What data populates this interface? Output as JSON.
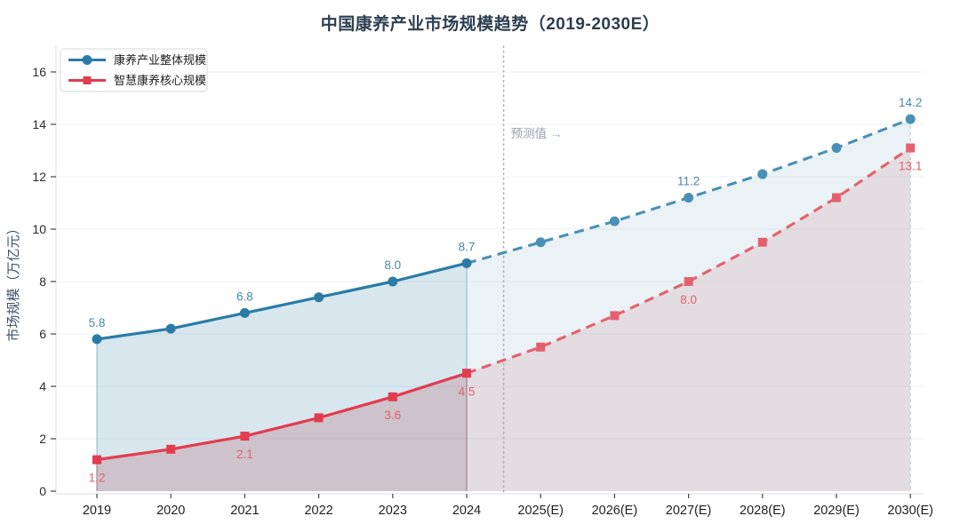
{
  "title": "中国康养产业市场规模趋势（2019-2030E）",
  "chart_data": {
    "type": "line",
    "title": "中国康养产业市场规模趋势（2019-2030E）",
    "xlabel": "",
    "ylabel": "市场规模（万亿元）",
    "categories": [
      "2019",
      "2020",
      "2021",
      "2022",
      "2023",
      "2024",
      "2025(E)",
      "2026(E)",
      "2027(E)",
      "2028(E)",
      "2029(E)",
      "2030(E)"
    ],
    "yticks": [
      0,
      2,
      4,
      6,
      8,
      10,
      12,
      14,
      16
    ],
    "ylim": [
      0,
      17
    ],
    "grid": true,
    "legend_position": "top-left",
    "forecast_start_index": 5,
    "forecast_divider_label": "预测值 →",
    "forecast_divider_color": "#a9aeba",
    "series": [
      {
        "name": "康养产业整体规模",
        "marker": "circle",
        "color": "#2a7ca6",
        "forecast_color": "#4a90b5",
        "label_color": "#4a87ac",
        "fill_color": "46,124,166",
        "fill_alpha_hist": 0.19,
        "fill_alpha_forecast": 0.1,
        "label_position": "above",
        "values": [
          5.8,
          6.2,
          6.8,
          7.4,
          8.0,
          8.7,
          9.5,
          10.3,
          11.2,
          12.1,
          13.1,
          14.2
        ],
        "point_labels": {
          "0": "5.8",
          "2": "6.8",
          "4": "8.0",
          "5": "8.7",
          "8": "11.2",
          "11": "14.2"
        }
      },
      {
        "name": "智慧康养核心规模",
        "marker": "square",
        "color": "#e23c4e",
        "forecast_color": "#e5606e",
        "label_color": "#e0606f",
        "fill_color": "172,52,66",
        "fill_alpha_hist": 0.2,
        "fill_alpha_forecast": 0.11,
        "label_position": "below",
        "values": [
          1.2,
          1.6,
          2.1,
          2.8,
          3.6,
          4.5,
          5.5,
          6.7,
          8.0,
          9.5,
          11.2,
          13.1
        ],
        "point_labels": {
          "0": "1.2",
          "2": "2.1",
          "4": "3.6",
          "5": "4.5",
          "8": "8.0",
          "11": "13.1"
        }
      }
    ]
  }
}
